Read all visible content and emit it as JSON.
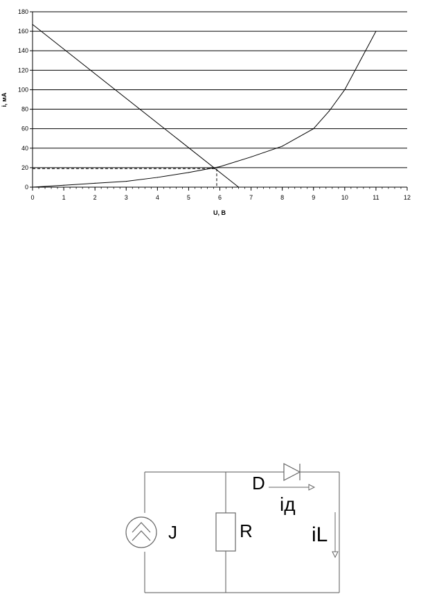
{
  "chart_data": {
    "type": "line",
    "xlabel": "U, B",
    "ylabel": "i, мА",
    "xlim": [
      0,
      12
    ],
    "ylim": [
      0,
      180
    ],
    "x_ticks": [
      0,
      1,
      2,
      3,
      4,
      5,
      6,
      7,
      8,
      9,
      10,
      11,
      12
    ],
    "y_ticks": [
      0,
      20,
      40,
      60,
      80,
      100,
      120,
      140,
      160,
      180
    ],
    "grid": "horizontal",
    "series": [
      {
        "kind": "diode-characteristic",
        "x": [
          0,
          1,
          2,
          3,
          4,
          5,
          6,
          7,
          8,
          9,
          9.5,
          10,
          10.5,
          11
        ],
        "y": [
          0,
          2,
          4,
          6,
          10,
          15,
          21,
          31,
          42,
          60,
          78,
          100,
          130,
          160
        ]
      },
      {
        "kind": "load-line",
        "x": [
          0,
          6.6
        ],
        "y": [
          167,
          0
        ]
      }
    ],
    "operating_point": {
      "x": 5.9,
      "y": 19
    }
  },
  "circuit": {
    "labels": {
      "source": "J",
      "resistor": "R",
      "diode": "D",
      "diode_current": "iд",
      "load_current": "iL"
    }
  }
}
